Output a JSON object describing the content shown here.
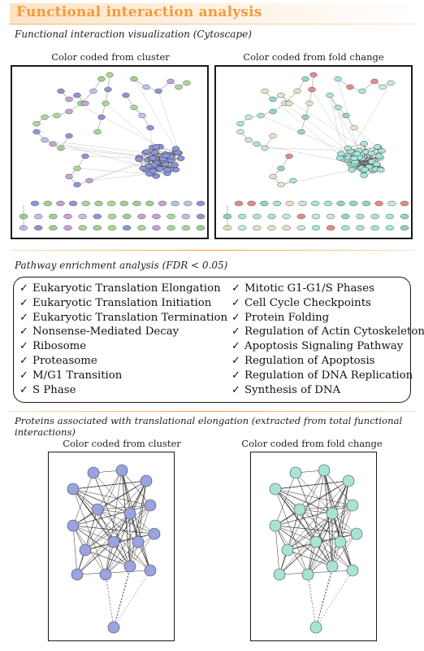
{
  "title": "Functional interaction analysis",
  "colors": {
    "accent": "#f49a3a",
    "cluster_node": "#9aa3e0",
    "cluster_green": "#a8d89a",
    "fold_node": "#a8e3d8"
  },
  "section1": {
    "heading": "Functional interaction visualization (Cytoscape)",
    "left_caption": "Color coded from cluster",
    "right_caption": "Color coded from fold change"
  },
  "section2": {
    "heading": "Pathway enrichment analysis (FDR < 0.05)",
    "check_icon": "check-icon",
    "left_items": [
      "Eukaryotic Translation Elongation",
      "Eukaryotic Translation Initiation",
      "Eukaryotic Translation Termination",
      "Nonsense-Mediated Decay",
      "Ribosome",
      "Proteasome",
      "M/G1 Transition",
      "S Phase"
    ],
    "right_items": [
      "Mitotic G1-G1/S Phases",
      "Cell Cycle Checkpoints",
      "Protein Folding",
      "Regulation of Actin Cytoskeleton",
      "Apoptosis Signaling Pathway",
      "Regulation of Apoptosis",
      "Regulation of DNA Replication",
      "Synthesis of DNA"
    ]
  },
  "section3": {
    "heading": "Proteins associated with translational elongation (extracted from total functional interactions)",
    "left_caption": "Color coded from cluster",
    "right_caption": "Color coded from fold change"
  }
}
